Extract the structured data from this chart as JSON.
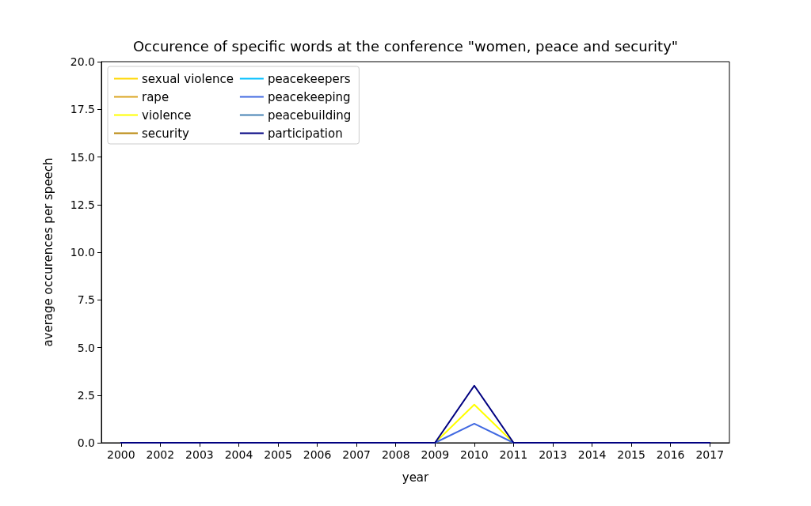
{
  "chart_data": {
    "type": "line",
    "title": "Occurence of specific words at the conference \"women, peace and security\"",
    "xlabel": "year",
    "ylabel": "average occurences per speech",
    "categories": [
      "2000",
      "2002",
      "2003",
      "2004",
      "2005",
      "2006",
      "2007",
      "2008",
      "2009",
      "2010",
      "2011",
      "2013",
      "2014",
      "2015",
      "2016",
      "2017"
    ],
    "series": [
      {
        "name": "sexual violence",
        "color": "#ffd700",
        "values": [
          null,
          null,
          null,
          null,
          null,
          null,
          null,
          null,
          null,
          null,
          null,
          null,
          null,
          null,
          null,
          null
        ]
      },
      {
        "name": "rape",
        "color": "#daa520",
        "values": [
          null,
          null,
          null,
          null,
          null,
          null,
          null,
          null,
          null,
          null,
          null,
          null,
          null,
          null,
          null,
          null
        ]
      },
      {
        "name": "violence",
        "color": "#ffff00",
        "values": [
          null,
          null,
          null,
          null,
          null,
          null,
          null,
          null,
          0,
          2,
          0,
          null,
          null,
          null,
          null,
          null
        ]
      },
      {
        "name": "security",
        "color": "#b8860b",
        "values": [
          null,
          null,
          null,
          null,
          null,
          null,
          null,
          null,
          null,
          null,
          null,
          null,
          null,
          null,
          null,
          null
        ]
      },
      {
        "name": "peacekeepers",
        "color": "#00bfff",
        "values": [
          null,
          null,
          null,
          null,
          null,
          null,
          null,
          null,
          null,
          null,
          null,
          null,
          null,
          null,
          null,
          null
        ]
      },
      {
        "name": "peacekeeping",
        "color": "#4169e1",
        "values": [
          null,
          null,
          null,
          null,
          null,
          null,
          null,
          null,
          0,
          1,
          0,
          null,
          null,
          null,
          null,
          null
        ]
      },
      {
        "name": "peacebuilding",
        "color": "#4682b4",
        "values": [
          null,
          null,
          null,
          null,
          null,
          null,
          null,
          null,
          null,
          null,
          null,
          null,
          null,
          null,
          null,
          null
        ]
      },
      {
        "name": "participation",
        "color": "#000080",
        "values": [
          0,
          0,
          0,
          0,
          0,
          0,
          0,
          0,
          0,
          3,
          0,
          0,
          0,
          0,
          0,
          0
        ]
      }
    ],
    "ylim": [
      0,
      20
    ],
    "yticks": [
      {
        "value": 0,
        "label": "0.0"
      },
      {
        "value": 2.5,
        "label": "2.5"
      },
      {
        "value": 5,
        "label": "5.0"
      },
      {
        "value": 7.5,
        "label": "7.5"
      },
      {
        "value": 10,
        "label": "10.0"
      },
      {
        "value": 12.5,
        "label": "12.5"
      },
      {
        "value": 15,
        "label": "15.0"
      },
      {
        "value": 17.5,
        "label": "17.5"
      },
      {
        "value": 20,
        "label": "20.0"
      }
    ],
    "grid": false,
    "legend": "top left",
    "marker": "none",
    "line_style": "solid"
  }
}
